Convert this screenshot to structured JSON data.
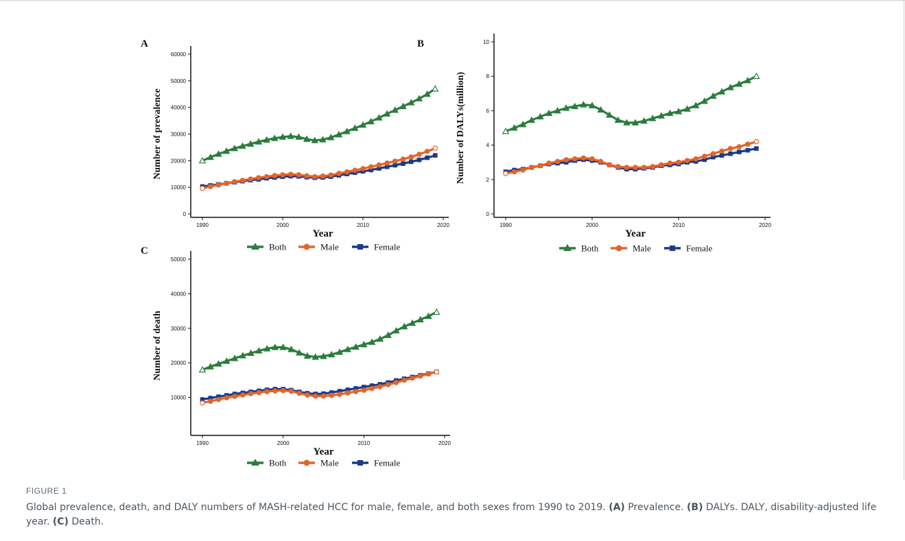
{
  "figure": {
    "label": "FIGURE 1",
    "caption_parts": [
      {
        "text": "Global prevalence, death, and DALY numbers of MASH-related HCC for male, female, and both sexes from 1990 to 2019. ",
        "bold": false
      },
      {
        "text": "(A)",
        "bold": true
      },
      {
        "text": " Prevalence. ",
        "bold": false
      },
      {
        "text": "(B)",
        "bold": true
      },
      {
        "text": " DALYs. DALY, disability-adjusted life year. ",
        "bold": false
      },
      {
        "text": "(C)",
        "bold": true
      },
      {
        "text": " Death.",
        "bold": false
      }
    ]
  },
  "colors": {
    "Both": "#2a7d3c",
    "Male": "#e3652a",
    "Female": "#1b3a8c"
  },
  "legend": [
    {
      "name": "Both",
      "marker": "triangle"
    },
    {
      "name": "Male",
      "marker": "circle"
    },
    {
      "name": "Female",
      "marker": "square"
    }
  ],
  "chart_data": [
    {
      "panel": "A",
      "type": "line",
      "xlabel": "Year",
      "ylabel": "Number of prevalence",
      "xlim": [
        1990,
        2020
      ],
      "xticks": [
        1990,
        2000,
        2010,
        2020
      ],
      "ylim": [
        0,
        60000
      ],
      "yticks": [
        0,
        10000,
        20000,
        30000,
        40000,
        50000,
        60000
      ],
      "grid": false,
      "legend_position": "bottom",
      "x": [
        1990,
        1991,
        1992,
        1993,
        1994,
        1995,
        1996,
        1997,
        1998,
        1999,
        2000,
        2001,
        2002,
        2003,
        2004,
        2005,
        2006,
        2007,
        2008,
        2009,
        2010,
        2011,
        2012,
        2013,
        2014,
        2015,
        2016,
        2017,
        2018,
        2019
      ],
      "series": [
        {
          "name": "Both",
          "values": [
            20000,
            21300,
            22500,
            23600,
            24600,
            25500,
            26300,
            27100,
            27800,
            28400,
            28900,
            29200,
            28900,
            28100,
            27600,
            27900,
            28700,
            29800,
            31000,
            32200,
            33400,
            34700,
            36100,
            37600,
            39000,
            40400,
            41800,
            43300,
            45000,
            47000
          ]
        },
        {
          "name": "Male",
          "values": [
            9600,
            10300,
            10900,
            11500,
            12100,
            12600,
            13100,
            13600,
            14000,
            14400,
            14700,
            14900,
            14700,
            14300,
            14000,
            14200,
            14600,
            15200,
            15800,
            16400,
            17000,
            17700,
            18400,
            19100,
            19800,
            20600,
            21400,
            22400,
            23500,
            24700
          ]
        },
        {
          "name": "Female",
          "values": [
            10300,
            10700,
            11100,
            11500,
            11900,
            12300,
            12700,
            13000,
            13400,
            13700,
            14000,
            14200,
            14100,
            13800,
            13600,
            13700,
            14000,
            14500,
            15000,
            15500,
            16000,
            16500,
            17100,
            17700,
            18300,
            18900,
            19600,
            20300,
            21100,
            22000
          ]
        }
      ]
    },
    {
      "panel": "B",
      "type": "line",
      "xlabel": "Year",
      "ylabel": "Number of DALYs(million)",
      "xlim": [
        1990,
        2020
      ],
      "xticks": [
        1990,
        2000,
        2010,
        2020
      ],
      "ylim": [
        0,
        10
      ],
      "yticks": [
        0,
        2,
        4,
        6,
        8,
        10
      ],
      "grid": false,
      "legend_position": "bottom",
      "x": [
        1990,
        1991,
        1992,
        1993,
        1994,
        1995,
        1996,
        1997,
        1998,
        1999,
        2000,
        2001,
        2002,
        2003,
        2004,
        2005,
        2006,
        2007,
        2008,
        2009,
        2010,
        2011,
        2012,
        2013,
        2014,
        2015,
        2016,
        2017,
        2018,
        2019
      ],
      "series": [
        {
          "name": "Both",
          "values": [
            4.8,
            5.0,
            5.2,
            5.45,
            5.65,
            5.85,
            6.0,
            6.15,
            6.25,
            6.35,
            6.3,
            6.05,
            5.75,
            5.45,
            5.3,
            5.3,
            5.4,
            5.55,
            5.7,
            5.85,
            5.95,
            6.1,
            6.3,
            6.55,
            6.85,
            7.1,
            7.35,
            7.55,
            7.75,
            8.0
          ]
        },
        {
          "name": "Male",
          "values": [
            2.35,
            2.45,
            2.55,
            2.7,
            2.8,
            2.95,
            3.05,
            3.15,
            3.2,
            3.25,
            3.2,
            3.05,
            2.85,
            2.75,
            2.7,
            2.7,
            2.7,
            2.75,
            2.85,
            2.95,
            3.0,
            3.1,
            3.2,
            3.35,
            3.5,
            3.65,
            3.8,
            3.9,
            4.05,
            4.2
          ]
        },
        {
          "name": "Female",
          "values": [
            2.45,
            2.55,
            2.6,
            2.7,
            2.8,
            2.9,
            2.95,
            3.0,
            3.1,
            3.15,
            3.1,
            3.0,
            2.85,
            2.7,
            2.6,
            2.6,
            2.65,
            2.7,
            2.8,
            2.85,
            2.9,
            3.0,
            3.05,
            3.15,
            3.3,
            3.4,
            3.5,
            3.6,
            3.7,
            3.8
          ]
        }
      ]
    },
    {
      "panel": "C",
      "type": "line",
      "xlabel": "Year",
      "ylabel": "Number of death",
      "xlim": [
        1990,
        2020
      ],
      "xticks": [
        1990,
        2000,
        2010,
        2020
      ],
      "ylim": [
        0,
        50000
      ],
      "yticks": [
        10000,
        20000,
        30000,
        40000,
        50000
      ],
      "grid": false,
      "legend_position": "bottom",
      "x": [
        1990,
        1991,
        1992,
        1993,
        1994,
        1995,
        1996,
        1997,
        1998,
        1999,
        2000,
        2001,
        2002,
        2003,
        2004,
        2005,
        2006,
        2007,
        2008,
        2009,
        2010,
        2011,
        2012,
        2013,
        2014,
        2015,
        2016,
        2017,
        2018,
        2019
      ],
      "series": [
        {
          "name": "Both",
          "values": [
            18000,
            18900,
            19700,
            20500,
            21300,
            22100,
            22800,
            23500,
            24100,
            24500,
            24500,
            23900,
            22900,
            22000,
            21700,
            21900,
            22400,
            23100,
            23900,
            24600,
            25300,
            26000,
            26900,
            28000,
            29300,
            30500,
            31500,
            32500,
            33500,
            34700
          ]
        },
        {
          "name": "Male",
          "values": [
            8400,
            8900,
            9400,
            9900,
            10300,
            10700,
            11100,
            11400,
            11700,
            11900,
            12000,
            11800,
            11200,
            10700,
            10400,
            10400,
            10600,
            10900,
            11300,
            11700,
            12100,
            12600,
            13100,
            13700,
            14300,
            15000,
            15600,
            16200,
            16800,
            17400
          ]
        },
        {
          "name": "Female",
          "values": [
            9400,
            9800,
            10200,
            10600,
            11000,
            11300,
            11600,
            11900,
            12200,
            12400,
            12400,
            12100,
            11600,
            11200,
            11000,
            11100,
            11400,
            11800,
            12200,
            12600,
            13000,
            13400,
            13800,
            14300,
            14900,
            15400,
            15900,
            16400,
            16900,
            17400
          ]
        }
      ]
    }
  ]
}
